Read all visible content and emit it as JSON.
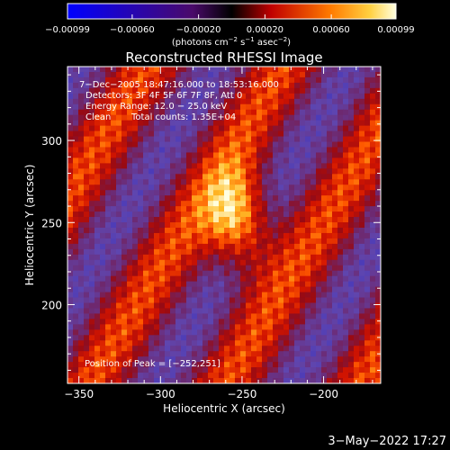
{
  "chart_data": {
    "type": "heatmap",
    "title": "Reconstructed RHESSI Image",
    "xlabel": "Heliocentric X (arcsec)",
    "ylabel": "Heliocentric Y (arcsec)",
    "xlim": [
      -357,
      -165
    ],
    "ylim": [
      152,
      345
    ],
    "x_ticks": [
      -350,
      -300,
      -250,
      -200
    ],
    "y_ticks": [
      200,
      250,
      300
    ],
    "x_tick_labels": [
      "−350",
      "−300",
      "−250",
      "−200"
    ],
    "y_tick_labels": [
      "200",
      "250",
      "300"
    ],
    "colorbar": {
      "range": [
        -0.00099,
        0.00099
      ],
      "tick_labels": [
        "−0.00099",
        "−0.00060",
        "−0.00020",
        "0.00020",
        "0.00060",
        "0.00099"
      ],
      "unit_main": "(photons cm",
      "unit_exp1": "−2",
      "unit_mid": " s",
      "unit_exp2": "−1",
      "unit_end": " asec",
      "unit_exp3": "−2",
      "unit_close": ")"
    },
    "annotations": {
      "time_range": "7−Dec−2005 18:47:16.000 to 18:53:16.000",
      "detectors": "Detectors: 3F 4F 5F 6F 7F 8F, Att 0",
      "energy_range": "Energy Range: 12.0 − 25.0 keV",
      "clean_label": "Clean",
      "total_counts": "Total counts: 1.35E+04",
      "peak_position": "Position of Peak = [−252,251]"
    },
    "peak": {
      "x": -252,
      "y": 251
    }
  },
  "timestamp": "3−May−2022 17:27",
  "colors": {
    "background": "#000000",
    "colormap": [
      "#0000ff",
      "#5a3aa0",
      "#8a2a40",
      "#ff1a00",
      "#ff8a00",
      "#ffff80",
      "#ffffff"
    ]
  }
}
